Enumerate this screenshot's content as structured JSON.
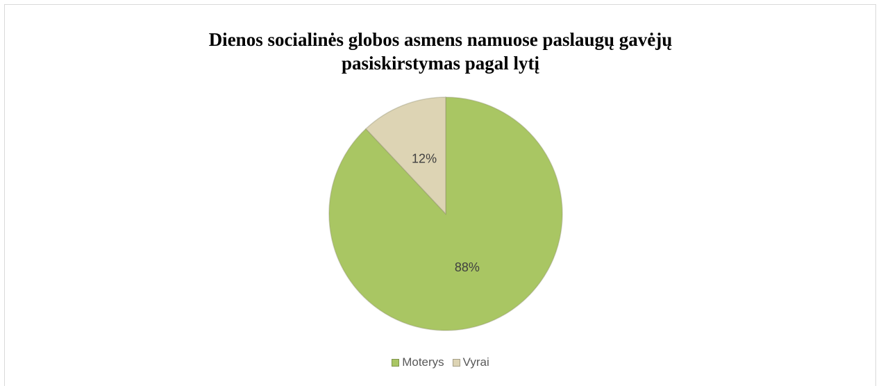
{
  "chart_data": {
    "type": "pie",
    "title": "Dienos socialinės globos asmens namuose paslaugų gavėjų pasiskirstymas pagal lytį",
    "categories": [
      "Moterys",
      "Vyrai"
    ],
    "values": [
      88,
      12
    ],
    "value_labels": [
      "88%",
      "12%"
    ],
    "colors": [
      "#a9c663",
      "#ddd4b4"
    ],
    "legend": "bottom"
  }
}
